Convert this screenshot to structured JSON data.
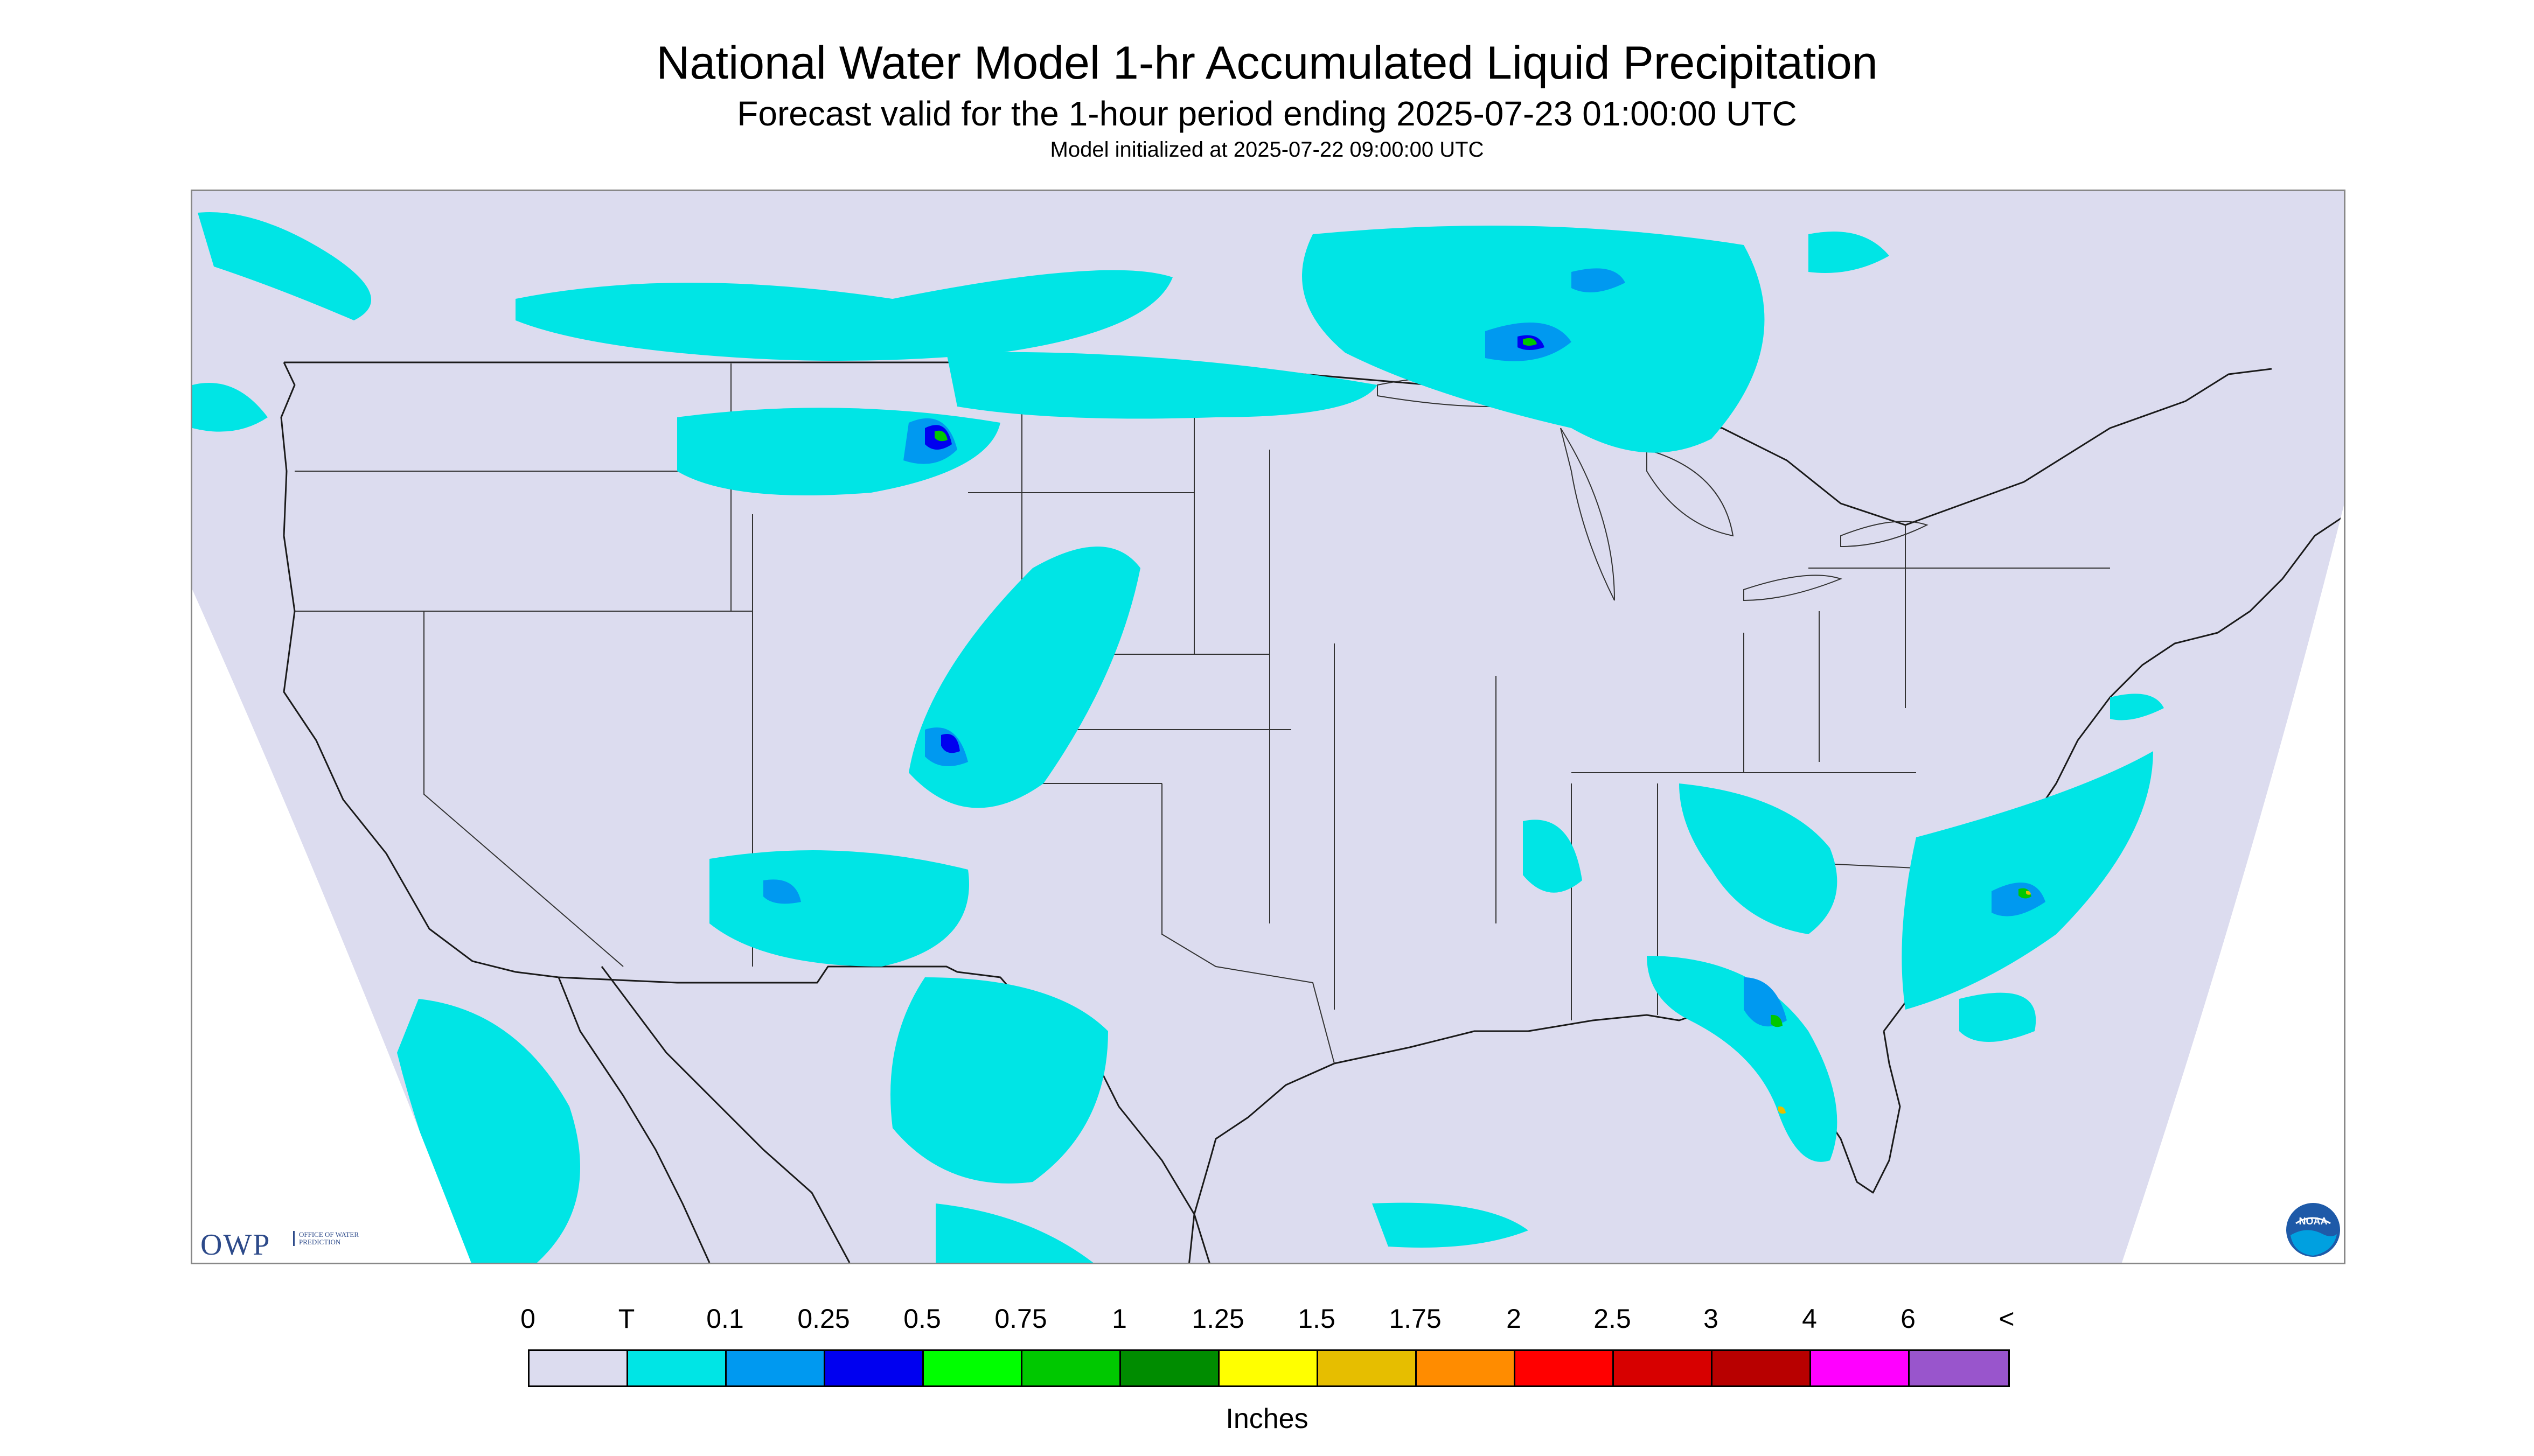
{
  "title": "National Water Model 1-hr Accumulated Liquid Precipitation",
  "subtitle": "Forecast valid for the 1-hour period ending 2025-07-23 01:00:00 UTC",
  "init_line": "Model initialized at 2025-07-22 09:00:00 UTC",
  "logos": {
    "owp_mark": "OWP",
    "owp_text": "Office of Water Prediction",
    "noaa_text": "NOAA"
  },
  "colors": {
    "background_no_precip": "#dcdcef",
    "map_outline": "#1a1a1a",
    "outside_domain": "#ffffff"
  },
  "legend": {
    "units": "Inches",
    "labels": [
      "0",
      "T",
      "0.1",
      "0.25",
      "0.5",
      "0.75",
      "1",
      "1.25",
      "1.5",
      "1.75",
      "2",
      "2.5",
      "3",
      "4",
      "6",
      "<"
    ],
    "swatch_colors": [
      "#dcdcef",
      "#00e5e5",
      "#0099f0",
      "#0000f0",
      "#00ff00",
      "#00c800",
      "#008c00",
      "#ffff00",
      "#e6be00",
      "#ff8c00",
      "#ff0000",
      "#d70000",
      "#b80000",
      "#ff00ff",
      "#9955cc"
    ]
  },
  "precip_areas": [
    {
      "region": "Washington/Pacific NW coast",
      "level": "T"
    },
    {
      "region": "Montana and Northern Plains",
      "level": "0.25"
    },
    {
      "region": "Southern Manitoba / Ontario",
      "level": "0.5"
    },
    {
      "region": "Lake Superior north shore",
      "level": "0.5"
    },
    {
      "region": "Colorado and New Mexico",
      "level": "0.25"
    },
    {
      "region": "Arizona",
      "level": "0.25"
    },
    {
      "region": "Northern Mexico (Sierra Madre)",
      "level": "0.25"
    },
    {
      "region": "Georgia / South Carolina",
      "level": "0.5"
    },
    {
      "region": "Florida peninsula",
      "level": "1"
    },
    {
      "region": "Atlantic off the Carolinas",
      "level": "1"
    },
    {
      "region": "Eastern Pacific off Baja California",
      "level": "T"
    }
  ]
}
